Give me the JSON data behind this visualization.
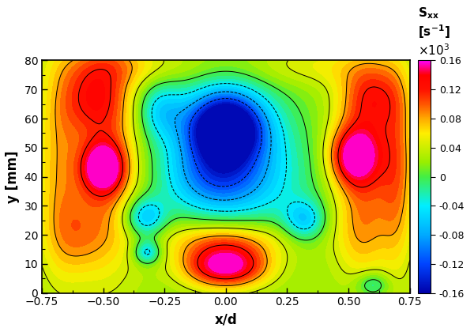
{
  "xlabel": "x/d",
  "ylabel": "y [mm]",
  "xlim": [
    -0.75,
    0.75
  ],
  "ylim": [
    0,
    80
  ],
  "vmin": -0.16,
  "vmax": 0.16,
  "contour_levels": [
    -0.16,
    -0.12,
    -0.08,
    -0.04,
    0,
    0.04,
    0.08,
    0.12,
    0.16
  ],
  "colorbar_ticks": [
    -0.16,
    -0.12,
    -0.08,
    -0.04,
    0,
    0.04,
    0.08,
    0.12,
    0.16
  ],
  "colorbar_ticklabels": [
    "-0.16",
    "-0.12",
    "-0.08",
    "-0.04",
    "0",
    "0.04",
    "0.08",
    "0.12",
    "0.16"
  ],
  "xticks": [
    -0.75,
    -0.5,
    -0.25,
    0,
    0.25,
    0.5,
    0.75
  ],
  "yticks": [
    0,
    10,
    20,
    30,
    40,
    50,
    60,
    70,
    80
  ],
  "cmap_nodes": [
    [
      0.0,
      "#0000AA"
    ],
    [
      0.125,
      "#0044FF"
    ],
    [
      0.25,
      "#00AAFF"
    ],
    [
      0.375,
      "#00EEFF"
    ],
    [
      0.5,
      "#44EE44"
    ],
    [
      0.5625,
      "#99EE00"
    ],
    [
      0.625,
      "#CCEE00"
    ],
    [
      0.6875,
      "#FFEE00"
    ],
    [
      0.75,
      "#FFAA00"
    ],
    [
      0.8125,
      "#FF5500"
    ],
    [
      0.875,
      "#FF1100"
    ],
    [
      0.9375,
      "#FF0000"
    ],
    [
      1.0,
      "#FF00FF"
    ]
  ]
}
